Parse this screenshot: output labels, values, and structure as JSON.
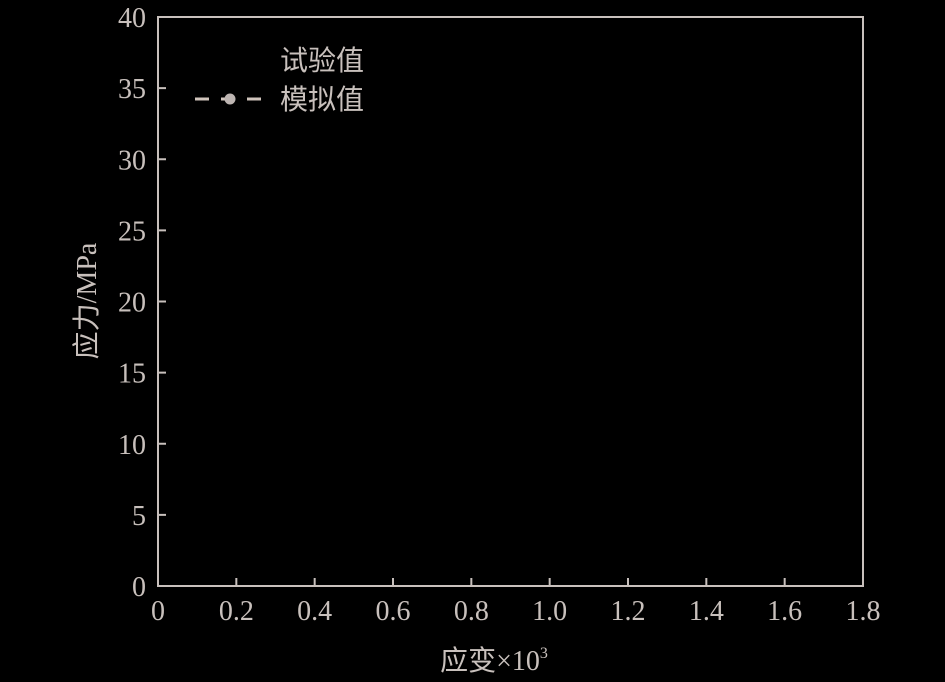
{
  "chart_data": {
    "type": "line",
    "title": "",
    "xlabel": "应变×10",
    "xlabel_superscript": "3",
    "ylabel": "应力/MPa",
    "xlim": [
      0,
      1.8
    ],
    "ylim": [
      0,
      40
    ],
    "xticks": [
      "0",
      "0.2",
      "0.4",
      "0.6",
      "0.8",
      "1.0",
      "1.2",
      "1.4",
      "1.6",
      "1.8"
    ],
    "yticks": [
      "0",
      "5",
      "10",
      "15",
      "20",
      "25",
      "30",
      "35",
      "40"
    ],
    "grid": false,
    "legend_position": "top-left",
    "series": [
      {
        "name": "试验值",
        "x": [],
        "y": []
      },
      {
        "name": "模拟值",
        "x": [],
        "y": [],
        "style": "dashed",
        "marker": "circle"
      }
    ],
    "colors": {
      "background": "#000000",
      "axis": "#c8c0bc",
      "legend_marker": "#d0c4bc"
    }
  }
}
